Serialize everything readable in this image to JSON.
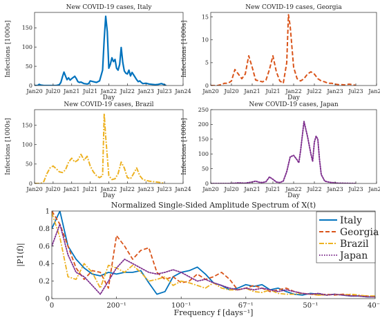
{
  "chart_data": [
    {
      "type": "line",
      "title": "New COVID-19 cases, Italy",
      "xlabel": "Day",
      "ylabel": "Infections [1000s]",
      "x_ticks": [
        "Jan20",
        "Jul20",
        "Jan21",
        "Jul21",
        "Jan22",
        "Jul22",
        "Jan23",
        "Jul23",
        "Jan24"
      ],
      "y_ticks": [
        0,
        50,
        100,
        150
      ],
      "xlim": [
        0,
        48
      ],
      "ylim": [
        0,
        190
      ],
      "grid": false,
      "series": [
        {
          "style": "solid",
          "color": "#0072BD",
          "x": [
            0,
            1,
            1.5,
            2,
            3,
            4,
            5,
            6,
            7,
            8,
            8.5,
            9,
            9.5,
            10,
            10.5,
            11,
            11.5,
            12,
            13,
            13.5,
            14,
            14.5,
            15,
            16,
            17,
            17.5,
            18,
            19,
            20,
            21,
            22,
            22.5,
            23,
            23.5,
            24,
            24.5,
            25,
            25.5,
            26,
            26.5,
            27,
            27.5,
            28,
            28.5,
            29,
            29.5,
            30,
            30.5,
            31,
            31.5,
            32,
            33,
            33.5,
            34,
            34.5,
            35,
            36,
            37,
            38,
            39,
            40,
            41,
            42,
            42.5
          ],
          "y": [
            0,
            0,
            3,
            1,
            0,
            0,
            0,
            0,
            0,
            2,
            8,
            22,
            35,
            25,
            15,
            20,
            14,
            18,
            24,
            18,
            10,
            8,
            9,
            5,
            4,
            5,
            12,
            10,
            8,
            12,
            40,
            120,
            180,
            140,
            45,
            55,
            72,
            62,
            68,
            45,
            40,
            55,
            99,
            60,
            38,
            32,
            30,
            40,
            25,
            34,
            28,
            15,
            10,
            12,
            8,
            5,
            6,
            4,
            3,
            2,
            3,
            5,
            2,
            0
          ]
        }
      ]
    },
    {
      "type": "line",
      "title": "New COVID-19 cases, Georgia",
      "xlabel": "Day",
      "ylabel": "Infections [1000s]",
      "x_ticks": [
        "Jan20",
        "Jul20",
        "Jan21",
        "Jul21",
        "Jan22",
        "Jul22",
        "Jan23",
        "Jul23",
        "Jan24"
      ],
      "y_ticks": [
        0,
        5,
        10,
        15
      ],
      "xlim": [
        0,
        48
      ],
      "ylim": [
        0,
        16
      ],
      "grid": false,
      "series": [
        {
          "style": "dashed",
          "color": "#D95319",
          "x": [
            0,
            1,
            2,
            3,
            4,
            5,
            6,
            7,
            8,
            9,
            10,
            11,
            12,
            13,
            14,
            15,
            16,
            17,
            18,
            19,
            20,
            21,
            22,
            22.5,
            23,
            24,
            25,
            26,
            27,
            28,
            29,
            30,
            31,
            32,
            33,
            34,
            35,
            36,
            37,
            38,
            39,
            40,
            41,
            42
          ],
          "y": [
            0,
            0,
            0,
            0.2,
            0.5,
            0.5,
            1,
            3.5,
            2.5,
            1.5,
            2.5,
            6.5,
            4,
            1.2,
            1,
            0.8,
            1.2,
            3.5,
            6.5,
            3,
            1,
            0.5,
            5,
            15.5,
            13,
            4,
            1.5,
            1,
            1.5,
            2.5,
            3,
            2.5,
            1.5,
            1,
            0.8,
            0.5,
            0.5,
            0.3,
            0.2,
            0.2,
            0.1,
            0.3,
            0.2,
            0
          ]
        }
      ]
    },
    {
      "type": "line",
      "title": "New COVID-19 cases, Brazil",
      "xlabel": "Day",
      "ylabel": "Infections [1000s]",
      "x_ticks": [
        "Jan20",
        "Jul20",
        "Jan21",
        "Jul21",
        "Jan22",
        "Jul22",
        "Jan23",
        "Jul23",
        "Jan24"
      ],
      "y_ticks": [
        0,
        50,
        100,
        150
      ],
      "xlim": [
        0,
        48
      ],
      "ylim": [
        0,
        190
      ],
      "grid": false,
      "series": [
        {
          "style": "dashdot",
          "color": "#EDB120",
          "x": [
            0,
            2,
            3,
            4,
            5,
            6,
            7,
            8,
            9,
            10,
            11,
            12,
            13,
            14,
            15,
            16,
            17,
            18,
            19,
            20,
            21,
            22,
            22.5,
            23,
            24,
            25,
            26,
            27,
            28,
            29,
            30,
            31,
            32,
            33,
            34,
            35,
            36,
            37,
            38,
            39,
            40,
            41,
            42
          ],
          "y": [
            0,
            0,
            5,
            25,
            40,
            45,
            38,
            30,
            28,
            35,
            55,
            65,
            55,
            60,
            75,
            60,
            70,
            45,
            30,
            20,
            15,
            20,
            180,
            120,
            20,
            10,
            12,
            25,
            55,
            40,
            15,
            12,
            25,
            40,
            20,
            10,
            8,
            6,
            5,
            4,
            3,
            2,
            0
          ]
        }
      ]
    },
    {
      "type": "line",
      "title": "New COVID-19 cases, Japan",
      "xlabel": "Day",
      "ylabel": "Infections [1000s]",
      "x_ticks": [
        "Jan20",
        "Jul20",
        "Jan21",
        "Jul21",
        "Jan22",
        "Jul22",
        "Jan23",
        "Jul23",
        "Jan24"
      ],
      "y_ticks": [
        0,
        50,
        100,
        150,
        200,
        250
      ],
      "xlim": [
        0,
        48
      ],
      "ylim": [
        0,
        250
      ],
      "grid": false,
      "series": [
        {
          "style": "dotted",
          "color": "#7E2F8E",
          "x": [
            0,
            5,
            7,
            8,
            10,
            11,
            12,
            13,
            14,
            15,
            16,
            17,
            18,
            19,
            20,
            21,
            22,
            23,
            24,
            25,
            25.5,
            26,
            27,
            28,
            29,
            29.5,
            30,
            30.5,
            31,
            31.5,
            32,
            33,
            34,
            35,
            36,
            37,
            38,
            39,
            40,
            41,
            42
          ],
          "y": [
            0,
            0,
            1,
            2,
            1,
            3,
            5,
            8,
            4,
            3,
            6,
            22,
            14,
            5,
            3,
            8,
            40,
            90,
            95,
            80,
            70,
            110,
            210,
            160,
            100,
            75,
            140,
            160,
            150,
            80,
            30,
            8,
            5,
            3,
            2,
            1,
            1,
            0.5,
            0.5,
            0.2,
            0
          ]
        }
      ]
    },
    {
      "type": "line",
      "title": "Normalized Single-Sided Amplitude Spectrum of X(t)",
      "xlabel": "Frequency f [days⁻¹]",
      "ylabel": "|P1(f)|",
      "x_ticks": [
        "0",
        "200⁻¹",
        "100⁻¹",
        "67⁻¹",
        "50⁻¹",
        "40⁻¹"
      ],
      "y_ticks": [
        0,
        0.2,
        0.4,
        0.6,
        0.8,
        1
      ],
      "xlim": [
        0,
        0.025
      ],
      "ylim": [
        0,
        1
      ],
      "grid": false,
      "legend": "top-right",
      "series": [
        {
          "name": "Italy",
          "style": "solid",
          "color": "#0072BD",
          "x": [
            0,
            0.000625,
            0.00125,
            0.001875,
            0.0025,
            0.003125,
            0.00375,
            0.004375,
            0.005,
            0.005625,
            0.00625,
            0.006875,
            0.0075,
            0.008125,
            0.00875,
            0.009375,
            0.01,
            0.010625,
            0.01125,
            0.011875,
            0.0125,
            0.013125,
            0.01375,
            0.014375,
            0.015,
            0.015625,
            0.01625,
            0.016875,
            0.0175,
            0.018125,
            0.01875,
            0.019375,
            0.02,
            0.020625,
            0.02125,
            0.021875,
            0.0225,
            0.023125,
            0.02375,
            0.024375,
            0.025
          ],
          "y": [
            0.8,
            1,
            0.6,
            0.45,
            0.35,
            0.28,
            0.26,
            0.3,
            0.28,
            0.3,
            0.3,
            0.32,
            0.18,
            0.05,
            0.08,
            0.25,
            0.3,
            0.32,
            0.36,
            0.28,
            0.18,
            0.15,
            0.1,
            0.12,
            0.16,
            0.14,
            0.16,
            0.1,
            0.12,
            0.08,
            0.05,
            0.04,
            0.06,
            0.05,
            0.04,
            0.05,
            0.04,
            0.03,
            0.03,
            0.02,
            0.02
          ]
        },
        {
          "name": "Georgia",
          "style": "dashed",
          "color": "#D95319",
          "x": [
            0,
            0.000625,
            0.00125,
            0.001875,
            0.0025,
            0.003125,
            0.00375,
            0.004375,
            0.005,
            0.005625,
            0.00625,
            0.006875,
            0.0075,
            0.008125,
            0.00875,
            0.009375,
            0.01,
            0.010625,
            0.01125,
            0.011875,
            0.0125,
            0.013125,
            0.01375,
            0.014375,
            0.015,
            0.015625,
            0.01625,
            0.016875,
            0.0175,
            0.018125,
            0.01875,
            0.019375,
            0.02,
            0.020625,
            0.02125,
            0.021875,
            0.0225,
            0.023125,
            0.02375,
            0.024375,
            0.025
          ],
          "y": [
            1,
            0.85,
            0.6,
            0.35,
            0.22,
            0.32,
            0.3,
            0.12,
            0.72,
            0.6,
            0.45,
            0.55,
            0.58,
            0.3,
            0.22,
            0.25,
            0.18,
            0.2,
            0.28,
            0.22,
            0.25,
            0.3,
            0.22,
            0.1,
            0.12,
            0.15,
            0.12,
            0.08,
            0.1,
            0.12,
            0.08,
            0.06,
            0.05,
            0.04,
            0.05,
            0.04,
            0.05,
            0.04,
            0.03,
            0.03,
            0.02
          ]
        },
        {
          "name": "Brazil",
          "style": "dashdot",
          "color": "#EDB120",
          "x": [
            0,
            0.000625,
            0.00125,
            0.001875,
            0.0025,
            0.003125,
            0.00375,
            0.004375,
            0.005,
            0.005625,
            0.00625,
            0.006875,
            0.0075,
            0.008125,
            0.00875,
            0.009375,
            0.01,
            0.010625,
            0.01125,
            0.011875,
            0.0125,
            0.013125,
            0.01375,
            0.014375,
            0.015,
            0.015625,
            0.01625,
            0.016875,
            0.0175,
            0.018125,
            0.01875,
            0.019375,
            0.02,
            0.020625,
            0.02125,
            0.021875,
            0.0225,
            0.023125,
            0.02375,
            0.024375,
            0.025
          ],
          "y": [
            0.98,
            0.7,
            0.25,
            0.22,
            0.4,
            0.3,
            0.12,
            0.38,
            0.35,
            0.3,
            0.38,
            0.3,
            0.2,
            0.22,
            0.25,
            0.15,
            0.2,
            0.18,
            0.15,
            0.12,
            0.18,
            0.12,
            0.1,
            0.1,
            0.12,
            0.08,
            0.07,
            0.1,
            0.06,
            0.05,
            0.05,
            0.06,
            0.05,
            0.04,
            0.04,
            0.05,
            0.04,
            0.05,
            0.04,
            0.03,
            0.03
          ]
        },
        {
          "name": "Japan",
          "style": "dotted",
          "color": "#7E2F8E",
          "x": [
            0,
            0.000625,
            0.00125,
            0.001875,
            0.0025,
            0.003125,
            0.00375,
            0.004375,
            0.005,
            0.005625,
            0.00625,
            0.006875,
            0.0075,
            0.008125,
            0.00875,
            0.009375,
            0.01,
            0.010625,
            0.01125,
            0.011875,
            0.0125,
            0.013125,
            0.01375,
            0.014375,
            0.015,
            0.015625,
            0.01625,
            0.016875,
            0.0175,
            0.018125,
            0.01875,
            0.019375,
            0.02,
            0.020625,
            0.02125,
            0.021875,
            0.0225,
            0.023125,
            0.02375,
            0.024375,
            0.025
          ],
          "y": [
            0.6,
            0.85,
            0.5,
            0.3,
            0.25,
            0.15,
            0.05,
            0.2,
            0.35,
            0.45,
            0.4,
            0.35,
            0.3,
            0.28,
            0.3,
            0.33,
            0.3,
            0.25,
            0.2,
            0.22,
            0.18,
            0.15,
            0.12,
            0.1,
            0.12,
            0.1,
            0.12,
            0.1,
            0.08,
            0.1,
            0.08,
            0.06,
            0.05,
            0.06,
            0.04,
            0.05,
            0.04,
            0.03,
            0.03,
            0.02,
            0.02
          ]
        }
      ]
    }
  ]
}
